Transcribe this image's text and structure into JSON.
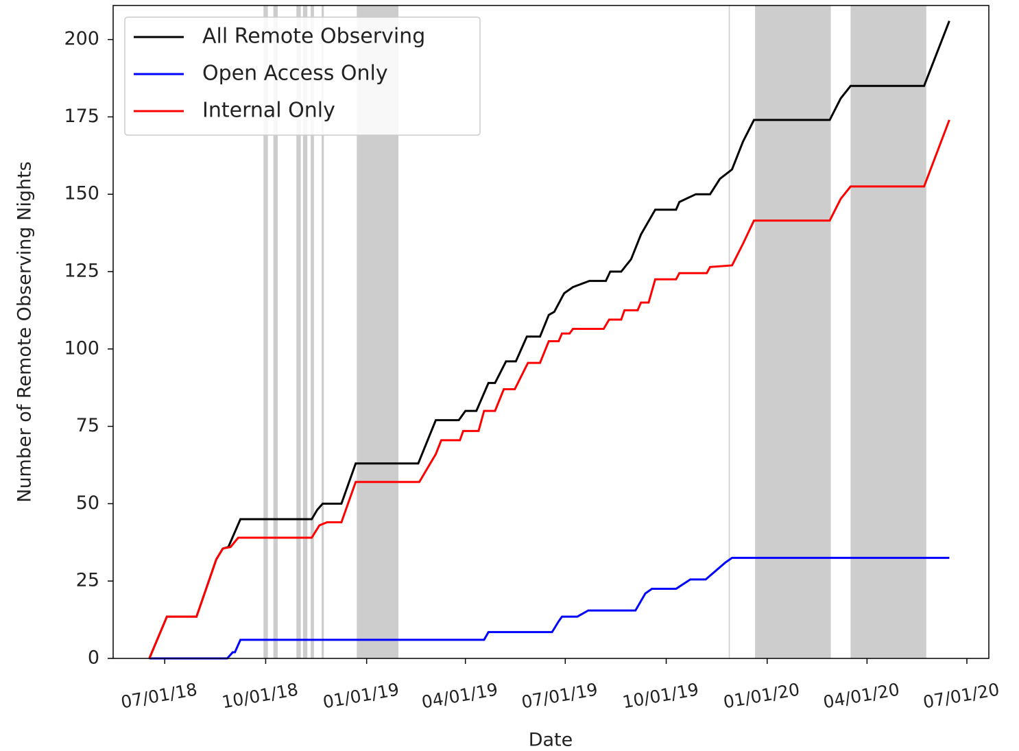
{
  "chart_data": {
    "type": "line",
    "x_label": "Date",
    "y_label": "Number of Remote Observing Nights",
    "xlim": [
      "05/15/18",
      "07/21/20"
    ],
    "xticks": [
      "07/01/18",
      "10/01/18",
      "01/01/19",
      "04/01/19",
      "07/01/19",
      "10/01/19",
      "01/01/20",
      "04/01/20",
      "07/01/20"
    ],
    "ylim": [
      0,
      211
    ],
    "yticks": [
      0,
      25,
      50,
      75,
      100,
      125,
      150,
      175,
      200
    ],
    "legend": "upper left",
    "span_color": "#c4c4c4",
    "shaded_spans": [
      {
        "start": "09/29/18",
        "end": "10/03/18"
      },
      {
        "start": "10/08/18",
        "end": "10/12/18"
      },
      {
        "start": "10/29/18",
        "end": "11/02/18"
      },
      {
        "start": "11/04/18",
        "end": "11/08/18"
      },
      {
        "start": "11/11/18",
        "end": "11/14/18"
      },
      {
        "start": "11/21/18",
        "end": "11/23/18"
      },
      {
        "start": "12/23/18",
        "end": "01/30/19"
      },
      {
        "start": "11/27/19",
        "end": "11/28/19"
      },
      {
        "start": "12/21/19",
        "end": "02/28/20"
      },
      {
        "start": "03/17/20",
        "end": "05/25/20"
      }
    ],
    "series": [
      {
        "name": "All Remote Observing",
        "color": "#000000",
        "x": [
          "06/17/18",
          "07/03/18",
          "07/30/18",
          "08/17/18",
          "08/23/18",
          "08/28/18",
          "09/08/18",
          "11/12/18",
          "11/17/18",
          "11/22/18",
          "12/09/18",
          "12/22/18",
          "02/17/19",
          "03/05/19",
          "03/26/19",
          "04/01/19",
          "04/11/19",
          "04/22/19",
          "04/28/19",
          "05/08/19",
          "05/17/19",
          "05/27/19",
          "06/08/19",
          "06/16/19",
          "06/21/19",
          "06/30/19",
          "07/08/19",
          "07/23/19",
          "08/07/19",
          "08/11/19",
          "08/21/19",
          "08/30/19",
          "09/08/19",
          "09/21/19",
          "10/10/19",
          "10/13/19",
          "10/28/19",
          "11/10/19",
          "11/19/19",
          "11/30/19",
          "12/10/19",
          "12/20/19",
          "02/27/20",
          "03/08/20",
          "03/17/20",
          "05/23/20",
          "06/15/20"
        ],
        "values": [
          0,
          13.5,
          13.5,
          32,
          35.5,
          36,
          45,
          45,
          48,
          50,
          50,
          63,
          63,
          77,
          77,
          80,
          80,
          89,
          89,
          96,
          96,
          104,
          104,
          111,
          112,
          118,
          120,
          122,
          122,
          125,
          125,
          129,
          137,
          145,
          145,
          147.5,
          150,
          150,
          155,
          158,
          167,
          174,
          174,
          181,
          185,
          185,
          206
        ]
      },
      {
        "name": "Open Access Only",
        "color": "#0000ff",
        "x": [
          "06/17/18",
          "08/27/18",
          "09/01/18",
          "09/03/18",
          "09/08/18",
          "04/18/19",
          "04/22/19",
          "06/19/19",
          "06/25/19",
          "06/28/19",
          "07/12/19",
          "07/22/19",
          "09/03/19",
          "09/12/19",
          "09/18/19",
          "10/10/19",
          "10/23/19",
          "11/06/19",
          "11/24/19",
          "11/30/19",
          "06/15/20"
        ],
        "values": [
          0,
          0,
          2,
          2,
          6,
          6,
          8.5,
          8.5,
          12,
          13.5,
          13.5,
          15.5,
          15.5,
          21,
          22.5,
          22.5,
          25.5,
          25.5,
          31,
          32.5,
          32.5
        ]
      },
      {
        "name": "Internal Only",
        "color": "#ff0000",
        "x": [
          "06/17/18",
          "07/03/18",
          "07/30/18",
          "08/17/18",
          "08/23/18",
          "08/30/18",
          "09/06/18",
          "11/12/18",
          "11/19/18",
          "11/26/18",
          "12/09/18",
          "12/22/18",
          "02/18/19",
          "03/05/19",
          "03/10/19",
          "03/27/19",
          "03/30/19",
          "04/13/19",
          "04/18/19",
          "04/28/19",
          "05/06/19",
          "05/16/19",
          "05/28/19",
          "06/08/19",
          "06/16/19",
          "06/25/19",
          "06/28/19",
          "07/05/19",
          "07/08/19",
          "08/05/19",
          "08/10/19",
          "08/21/19",
          "08/24/19",
          "09/05/19",
          "09/08/19",
          "09/15/19",
          "09/21/19",
          "10/10/19",
          "10/13/19",
          "11/07/19",
          "11/10/19",
          "11/30/19",
          "12/10/19",
          "12/20/19",
          "02/27/20",
          "03/08/20",
          "03/17/20",
          "05/23/20",
          "06/15/20"
        ],
        "values": [
          0,
          13.5,
          13.5,
          32,
          35.5,
          36,
          39,
          39,
          43,
          44,
          44,
          57,
          57,
          66,
          70.5,
          70.5,
          73.5,
          73.5,
          80,
          80,
          87,
          87,
          95.5,
          95.5,
          102.5,
          102.5,
          105,
          105,
          106.5,
          106.5,
          109.5,
          109.5,
          112.5,
          112.5,
          115,
          115,
          122.5,
          122.5,
          124.5,
          124.5,
          126.5,
          127,
          134,
          141.5,
          141.5,
          148.5,
          152.5,
          152.5,
          174
        ]
      }
    ]
  }
}
